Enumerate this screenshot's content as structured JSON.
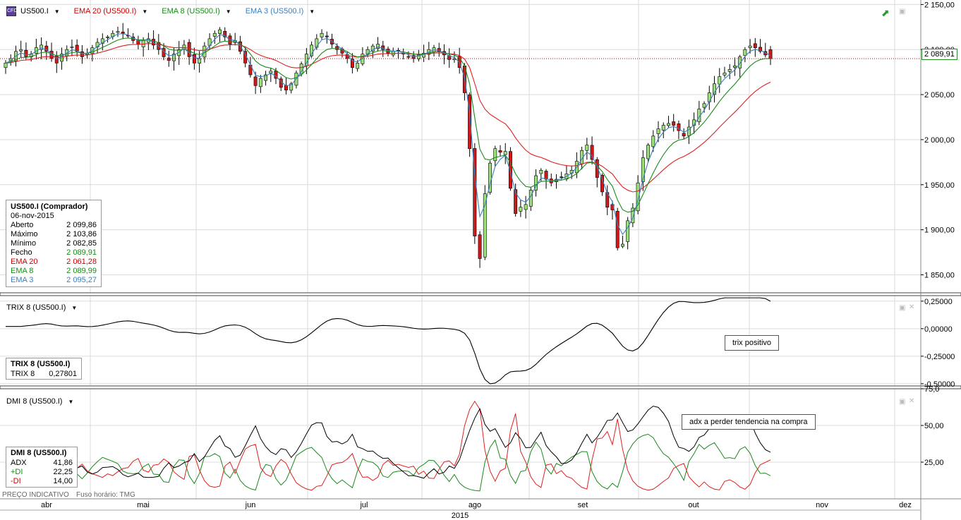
{
  "main_panel": {
    "symbol": "US500.I",
    "indicators": [
      {
        "label": "EMA 20 (US500.I)",
        "color": "#cc0000"
      },
      {
        "label": "EMA 8 (US500.I)",
        "color": "#1a8a1a"
      },
      {
        "label": "EMA 3 (US500.I)",
        "color": "#3a7fc1"
      }
    ],
    "price_tag": "2 089,91",
    "yticks": [
      "2 150,00",
      "2 100,00",
      "2 050,00",
      "2 000,00",
      "1 950,00",
      "1 900,00",
      "1 850,00"
    ]
  },
  "info_box": {
    "title": "US500.I (Comprador)",
    "date": "06-nov-2015",
    "rows": [
      {
        "label": "Aberto",
        "value": "2 099,86",
        "color": "#000000"
      },
      {
        "label": "Máximo",
        "value": "2 103,86",
        "color": "#000000"
      },
      {
        "label": "Mínimo",
        "value": "2 082,85",
        "color": "#000000"
      },
      {
        "label": "Fecho",
        "value": "2 089,91",
        "color": "#000000",
        "value_color": "#1a8a1a"
      },
      {
        "label": "EMA 20",
        "value": "2 061,28",
        "color": "#cc0000"
      },
      {
        "label": "EMA 8",
        "value": "2 089,99",
        "color": "#1a8a1a"
      },
      {
        "label": "EMA 3",
        "value": "2 095,27",
        "color": "#3a7fc1"
      }
    ]
  },
  "trix_panel": {
    "header": "TRIX 8 (US500.I)",
    "box_title": "TRIX 8 (US500.I)",
    "box_label": "TRIX 8",
    "box_value": "0,27801",
    "note": "trix positivo",
    "yticks": [
      "0,25000",
      "0,00000",
      "-0,25000",
      "-0,50000"
    ]
  },
  "dmi_panel": {
    "header": "DMI 8 (US500.I)",
    "box_title": "DMI 8 (US500.I)",
    "rows": [
      {
        "label": "ADX",
        "value": "41,86",
        "color": "#000000"
      },
      {
        "label": "+DI",
        "value": "22,25",
        "color": "#1a8a1a"
      },
      {
        "label": "-DI",
        "value": "14,00",
        "color": "#cc0000"
      }
    ],
    "note": "adx a perder tendencia na compra",
    "yticks": [
      "75,0",
      "50,00",
      "25,00"
    ]
  },
  "footer": {
    "price_note": "PREÇO INDICATIVO",
    "timezone": "Fuso horário: TMG",
    "months": [
      "abr",
      "mai",
      "jun",
      "jul",
      "ago",
      "set",
      "out",
      "nov",
      "dez"
    ],
    "year": "2015"
  },
  "chart_data": [
    {
      "type": "candlestick",
      "title": "US500.I",
      "ylim": [
        1830,
        2155
      ],
      "x_range": [
        "2015-03-26",
        "2015-12-05"
      ],
      "ohlc_recent": [
        {
          "date": "2015-11-06",
          "open": 2099.86,
          "high": 2103.86,
          "low": 2082.85,
          "close": 2089.91
        }
      ],
      "series": [
        {
          "name": "EMA 20",
          "last": 2061.28
        },
        {
          "name": "EMA 8",
          "last": 2089.99
        },
        {
          "name": "EMA 3",
          "last": 2095.27
        }
      ],
      "closes_approx": [
        2085,
        2090,
        2098,
        2100,
        2092,
        2095,
        2102,
        2105,
        2098,
        2090,
        2085,
        2095,
        2100,
        2103,
        2098,
        2092,
        2096,
        2102,
        2108,
        2112,
        2114,
        2118,
        2120,
        2118,
        2115,
        2110,
        2106,
        2110,
        2112,
        2105,
        2100,
        2092,
        2088,
        2095,
        2100,
        2105,
        2092,
        2085,
        2090,
        2104,
        2112,
        2118,
        2122,
        2114,
        2106,
        2110,
        2098,
        2085,
        2072,
        2060,
        2068,
        2072,
        2076,
        2068,
        2058,
        2055,
        2062,
        2074,
        2084,
        2095,
        2105,
        2112,
        2118,
        2114,
        2106,
        2100,
        2096,
        2090,
        2080,
        2085,
        2095,
        2100,
        2104,
        2106,
        2100,
        2096,
        2098,
        2098,
        2095,
        2092,
        2090,
        2094,
        2096,
        2100,
        2102,
        2098,
        2094,
        2089,
        2090,
        2080,
        2052,
        1990,
        1893,
        1868,
        1940,
        1974,
        1990,
        1986,
        1987,
        1946,
        1918,
        1925,
        1928,
        1944,
        1960,
        1966,
        1956,
        1952,
        1956,
        1958,
        1962,
        1966,
        1976,
        1988,
        1994,
        1978,
        1958,
        1942,
        1925,
        1922,
        1880,
        1884,
        1910,
        1924,
        1952,
        1980,
        1994,
        2004,
        2012,
        2016,
        2018,
        2016,
        2010,
        2004,
        2014,
        2022,
        2034,
        2040,
        2052,
        2062,
        2070,
        2074,
        2078,
        2082,
        2092,
        2100,
        2104,
        2102,
        2098,
        2094,
        2089.91
      ]
    },
    {
      "type": "line",
      "title": "TRIX 8 (US500.I)",
      "ylim": [
        -0.52,
        0.3
      ],
      "series": [
        {
          "name": "TRIX 8",
          "last": 0.27801
        }
      ]
    },
    {
      "type": "line",
      "title": "DMI 8 (US500.I)",
      "ylim": [
        0,
        75
      ],
      "series": [
        {
          "name": "ADX",
          "last": 41.86
        },
        {
          "name": "+DI",
          "last": 22.25
        },
        {
          "name": "-DI",
          "last": 14.0
        }
      ]
    }
  ]
}
